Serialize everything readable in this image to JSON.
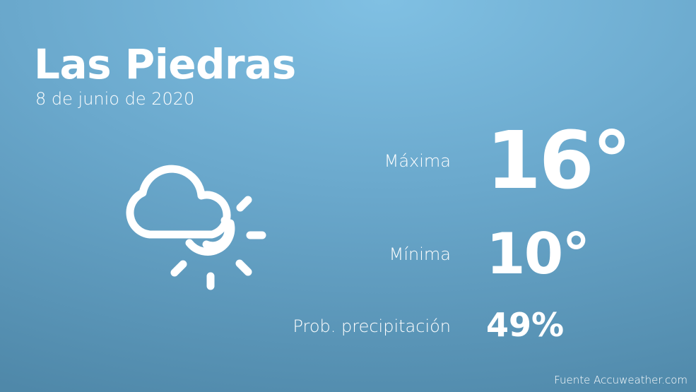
{
  "header": {
    "city": "Las Piedras",
    "date": "8 de junio de 2020"
  },
  "weather": {
    "icon": "partly-cloudy-sun-icon",
    "max_label": "Máxima",
    "max_value": "16°",
    "min_label": "Mínima",
    "min_value": "10°",
    "precip_label": "Prob. precipitación",
    "precip_value": "49%"
  },
  "footer": {
    "source": "Fuente Accuweather.com"
  },
  "colors": {
    "background_top": "#80c0e3",
    "background_bottom": "#4f88a9",
    "text": "#ffffff"
  }
}
